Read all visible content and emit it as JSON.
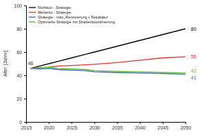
{
  "chart_data": {
    "type": "line",
    "y_label": "Alter [Jahre]",
    "x": [
      2016,
      2018,
      2020,
      2022,
      2025,
      2028,
      2030,
      2035,
      2040,
      2045,
      2050
    ],
    "series": [
      {
        "name": "Nichstun - Strategie",
        "color": "#000000",
        "values": [
          46,
          48,
          50,
          52,
          55,
          58,
          60,
          65,
          70,
          75,
          80
        ]
      },
      {
        "name": "Weiterso - Strategie",
        "color": "#e0342c",
        "values": [
          46,
          46.5,
          47,
          48,
          48.5,
          49,
          49.5,
          51,
          53,
          55,
          56
        ]
      },
      {
        "name": "Strategie - max_Renovierung + Reparatur",
        "color": "#3a5fb4",
        "values": [
          46,
          45.5,
          46,
          45,
          44.5,
          44,
          43,
          42.5,
          42,
          41.5,
          41
        ]
      },
      {
        "name": "Optimierte Strategie mit Straßenkoordinierung",
        "color": "#5cb82e",
        "values": [
          46,
          46.5,
          47,
          46,
          45.5,
          45,
          44,
          43.5,
          43,
          42.5,
          42
        ]
      }
    ],
    "xlim": [
      2015,
      2050
    ],
    "xticks": [
      2015,
      2020,
      2025,
      2030,
      2035,
      2040,
      2045,
      2050
    ],
    "ylim": [
      0,
      100
    ],
    "yticks": [
      0,
      20,
      40,
      60,
      80,
      100
    ],
    "legend": "upper left",
    "grid": false
  }
}
